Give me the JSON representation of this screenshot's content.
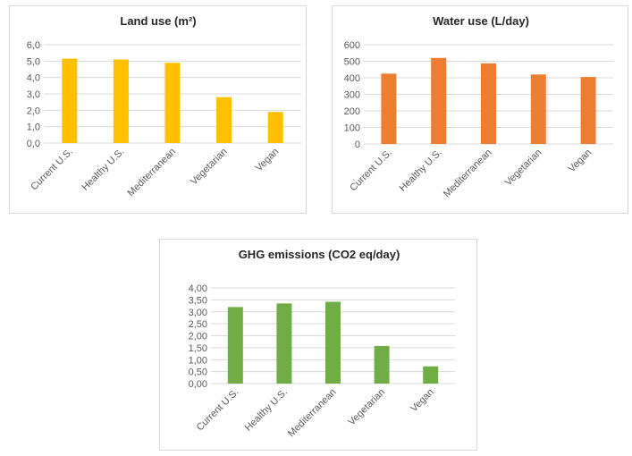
{
  "chart_data": [
    {
      "type": "bar",
      "title": "Land use (m²)",
      "categories": [
        "Current U.S.",
        "Healthy U.S.",
        "Mediterranean",
        "Vegetarian",
        "Vegan"
      ],
      "values": [
        5.15,
        5.1,
        4.9,
        2.8,
        1.9
      ],
      "yticks": [
        "0,0",
        "1,0",
        "2,0",
        "3,0",
        "4,0",
        "5,0",
        "6,0"
      ],
      "ylim": [
        0,
        6
      ],
      "grid": true,
      "color": "#FFC000"
    },
    {
      "type": "bar",
      "title": "Water use (L/day)",
      "categories": [
        "Current U.S.",
        "Healthy U.S.",
        "Mediterranean",
        "Vegetarian",
        "Vegan"
      ],
      "values": [
        425,
        520,
        487,
        420,
        405
      ],
      "yticks": [
        "0",
        "100",
        "200",
        "300",
        "400",
        "500",
        "600"
      ],
      "ylim": [
        0,
        600
      ],
      "grid": true,
      "color": "#ED7D31"
    },
    {
      "type": "bar",
      "title": "GHG emissions (CO2 eq/day)",
      "categories": [
        "Current U.S.",
        "Healthy U.S.",
        "Mediterranean",
        "Vegetarian",
        "Vegan"
      ],
      "values": [
        3.2,
        3.35,
        3.42,
        1.57,
        0.72
      ],
      "yticks": [
        "0,00",
        "0,50",
        "1,00",
        "1,50",
        "2,00",
        "2,50",
        "3,00",
        "3,50",
        "4,00"
      ],
      "ylim": [
        0,
        4
      ],
      "grid": true,
      "color": "#70AD47"
    }
  ]
}
